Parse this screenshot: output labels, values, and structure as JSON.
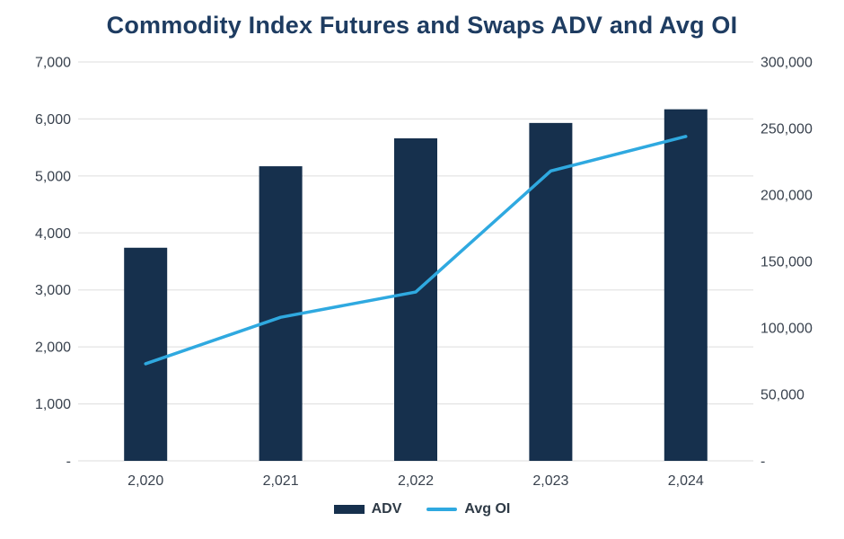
{
  "chart": {
    "title": "Commodity Index Futures and Swaps ADV and Avg OI",
    "legend": [
      {
        "label": "ADV",
        "type": "bar"
      },
      {
        "label": "Avg OI",
        "type": "line"
      }
    ]
  },
  "chart_data": {
    "type": "combo",
    "title": "Commodity Index Futures and Swaps ADV and Avg OI",
    "categories": [
      "2,020",
      "2,021",
      "2,022",
      "2,023",
      "2,024"
    ],
    "series": [
      {
        "name": "ADV",
        "type": "bar",
        "axis": "left",
        "color": "#16304d",
        "values": [
          3740,
          5170,
          5660,
          5930,
          6170
        ]
      },
      {
        "name": "Avg OI",
        "type": "line",
        "axis": "right",
        "color": "#2fa9e0",
        "values": [
          73000,
          108000,
          127000,
          218000,
          244000
        ]
      }
    ],
    "left_axis": {
      "min": 0,
      "max": 7000,
      "step": 1000,
      "tick_labels": [
        "-",
        "1,000",
        "2,000",
        "3,000",
        "4,000",
        "5,000",
        "6,000",
        "7,000"
      ]
    },
    "right_axis": {
      "min": 0,
      "max": 300000,
      "step": 50000,
      "tick_labels": [
        "-",
        "50,000",
        "100,000",
        "150,000",
        "200,000",
        "250,000",
        "300,000"
      ]
    },
    "grid": "horizontal",
    "legend_position": "bottom",
    "colors": {
      "grid": "#e4e4e4",
      "tick_text": "#39424e",
      "title_text": "#1e3c61",
      "background": "#ffffff"
    }
  }
}
